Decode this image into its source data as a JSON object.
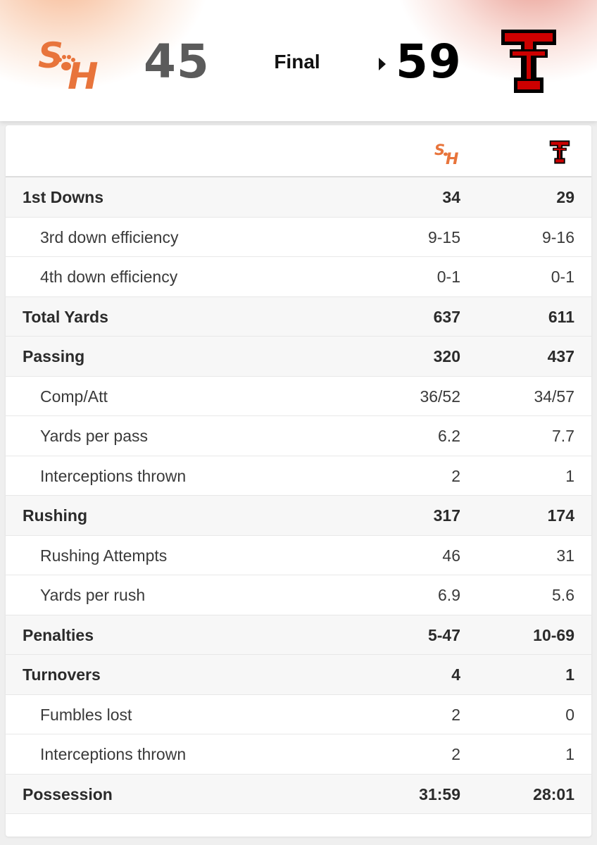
{
  "header": {
    "away_score": "45",
    "home_score": "59",
    "status": "Final",
    "away_logo_text": "S&H",
    "home_logo_text": "T",
    "colors": {
      "away": "#e8743b",
      "home": "#cc0000",
      "away_score": "#5b5b5b"
    }
  },
  "table": {
    "rows": [
      {
        "label": "1st Downs",
        "away": "34",
        "home": "29",
        "type": "main"
      },
      {
        "label": "3rd down efficiency",
        "away": "9-15",
        "home": "9-16",
        "type": "sub"
      },
      {
        "label": "4th down efficiency",
        "away": "0-1",
        "home": "0-1",
        "type": "sub"
      },
      {
        "label": "Total Yards",
        "away": "637",
        "home": "611",
        "type": "main"
      },
      {
        "label": "Passing",
        "away": "320",
        "home": "437",
        "type": "main"
      },
      {
        "label": "Comp/Att",
        "away": "36/52",
        "home": "34/57",
        "type": "sub"
      },
      {
        "label": "Yards per pass",
        "away": "6.2",
        "home": "7.7",
        "type": "sub"
      },
      {
        "label": "Interceptions thrown",
        "away": "2",
        "home": "1",
        "type": "sub"
      },
      {
        "label": "Rushing",
        "away": "317",
        "home": "174",
        "type": "main"
      },
      {
        "label": "Rushing Attempts",
        "away": "46",
        "home": "31",
        "type": "sub"
      },
      {
        "label": "Yards per rush",
        "away": "6.9",
        "home": "5.6",
        "type": "sub"
      },
      {
        "label": "Penalties",
        "away": "5-47",
        "home": "10-69",
        "type": "main"
      },
      {
        "label": "Turnovers",
        "away": "4",
        "home": "1",
        "type": "main"
      },
      {
        "label": "Fumbles lost",
        "away": "2",
        "home": "0",
        "type": "sub"
      },
      {
        "label": "Interceptions thrown",
        "away": "2",
        "home": "1",
        "type": "sub"
      },
      {
        "label": "Possession",
        "away": "31:59",
        "home": "28:01",
        "type": "main"
      }
    ]
  }
}
